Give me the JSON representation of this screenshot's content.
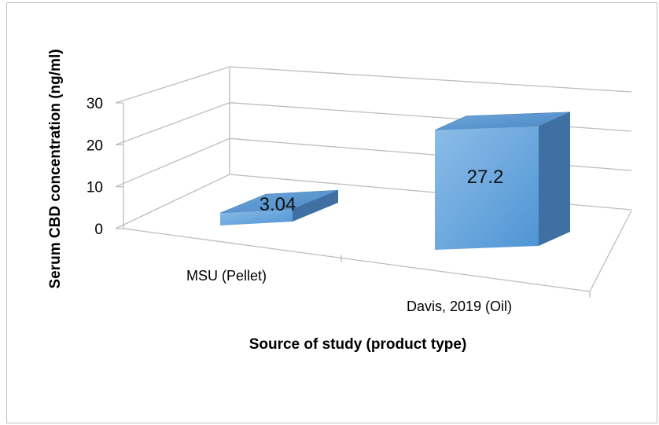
{
  "chart_data": {
    "type": "bar",
    "style": "3d-column",
    "categories": [
      "MSU (Pellet)",
      "Davis, 2019 (Oil)"
    ],
    "values": [
      3.04,
      27.2
    ],
    "data_labels": [
      "3.04",
      "27.2"
    ],
    "ylabel": "Serum CBD concentration (ng/ml)",
    "xlabel": "Source of study (product type)",
    "ylim": [
      0,
      30
    ],
    "yticks": [
      "0",
      "10",
      "20",
      "30"
    ],
    "grid": true,
    "legend": "none",
    "bar_color": "#5b9bd5"
  }
}
